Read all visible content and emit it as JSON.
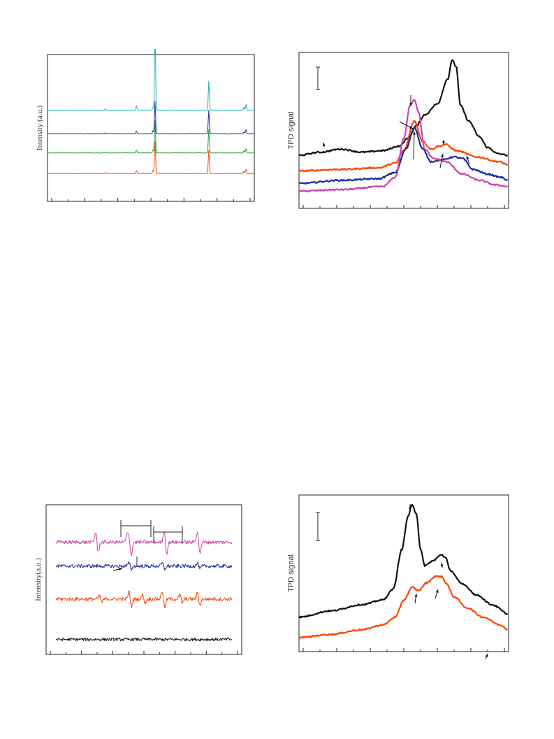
{
  "chart_data": [
    {
      "id": "xrd",
      "type": "line",
      "title": "",
      "xlabel": "",
      "ylabel": "Intensity (a.u.)",
      "xlim": [
        0,
        100
      ],
      "ylim": [
        0,
        100
      ],
      "grid": false,
      "tick_labels_visible": false,
      "series": [
        {
          "color": "#ff4500",
          "baseline": 19,
          "noise": 0.3,
          "peaks": [
            [
              52,
              22
            ],
            [
              78,
              16
            ],
            [
              51,
              2
            ],
            [
              96,
              3
            ],
            [
              43,
              2
            ],
            [
              28,
              0.6
            ],
            [
              95,
              1.5
            ]
          ]
        },
        {
          "color": "#1fa03c",
          "baseline": 33,
          "noise": 0.3,
          "peaks": [
            [
              52,
              22
            ],
            [
              78,
              16
            ],
            [
              51,
              2
            ],
            [
              96,
              3
            ],
            [
              43,
              2
            ],
            [
              28,
              0.6
            ],
            [
              95,
              1.5
            ]
          ]
        },
        {
          "color": "#1c2a9a",
          "baseline": 46,
          "noise": 0.3,
          "peaks": [
            [
              52,
              22
            ],
            [
              78,
              16
            ],
            [
              51,
              2
            ],
            [
              96,
              3
            ],
            [
              43,
              2
            ],
            [
              28,
              0.6
            ],
            [
              95,
              1.5
            ]
          ]
        },
        {
          "color": "#17b3a6",
          "baseline": 62,
          "noise": 0.3,
          "peaks": [
            [
              52,
              56
            ],
            [
              78,
              20
            ],
            [
              51,
              2
            ],
            [
              96,
              4
            ],
            [
              43,
              3
            ],
            [
              28,
              1
            ],
            [
              95,
              2
            ]
          ]
        }
      ]
    },
    {
      "id": "tpd-top",
      "type": "line",
      "title": "",
      "xlabel": "",
      "ylabel": "TPD signal",
      "xlim": [
        0,
        100
      ],
      "ylim": [
        0,
        100
      ],
      "grid": false,
      "tick_labels_visible": false,
      "series": [
        {
          "color": "#111111",
          "points": [
            [
              0,
              34
            ],
            [
              10,
              36
            ],
            [
              20,
              38
            ],
            [
              30,
              36
            ],
            [
              40,
              37
            ],
            [
              48,
              40
            ],
            [
              52,
              45
            ],
            [
              56,
              53
            ],
            [
              60,
              60
            ],
            [
              66,
              67
            ],
            [
              71,
              83
            ],
            [
              73,
              95
            ],
            [
              75,
              91
            ],
            [
              77,
              66
            ],
            [
              81,
              56
            ],
            [
              86,
              46
            ],
            [
              90,
              39
            ],
            [
              95,
              35
            ],
            [
              100,
              34
            ]
          ]
        },
        {
          "color": "#ff4500",
          "points": [
            [
              0,
              24
            ],
            [
              20,
              25
            ],
            [
              38,
              26
            ],
            [
              46,
              29
            ],
            [
              50,
              37
            ],
            [
              55,
              56
            ],
            [
              59,
              43
            ],
            [
              63,
              38
            ],
            [
              67,
              40
            ],
            [
              70,
              41
            ],
            [
              75,
              37
            ],
            [
              85,
              33
            ],
            [
              95,
              30
            ],
            [
              100,
              28
            ]
          ]
        },
        {
          "color": "#1c2a9a",
          "points": [
            [
              0,
              16
            ],
            [
              20,
              18
            ],
            [
              38,
              19
            ],
            [
              46,
              23
            ],
            [
              51,
              38
            ],
            [
              55,
              52
            ],
            [
              59,
              38
            ],
            [
              63,
              30
            ],
            [
              68,
              31
            ],
            [
              74,
              33
            ],
            [
              78,
              32
            ],
            [
              83,
              25
            ],
            [
              90,
              22
            ],
            [
              96,
              20
            ],
            [
              100,
              18
            ]
          ]
        },
        {
          "color": "#cc44aa",
          "points": [
            [
              0,
              11
            ],
            [
              20,
              12
            ],
            [
              40,
              14
            ],
            [
              46,
              20
            ],
            [
              50,
              45
            ],
            [
              53,
              66
            ],
            [
              55,
              70
            ],
            [
              57,
              62
            ],
            [
              60,
              38
            ],
            [
              64,
              32
            ],
            [
              70,
              30
            ],
            [
              78,
              22
            ],
            [
              86,
              18
            ],
            [
              94,
              15
            ],
            [
              100,
              14
            ]
          ]
        }
      ]
    },
    {
      "id": "epr",
      "type": "line",
      "title": "",
      "xlabel": "",
      "ylabel": "Intensity(a.u.)",
      "xlim": [
        0,
        100
      ],
      "ylim": [
        0,
        100
      ],
      "grid": false,
      "tick_labels_visible": false,
      "series": [
        {
          "color": "#111111",
          "baseline": 10,
          "noise": 1.0,
          "lines": []
        },
        {
          "color": "#ff4500",
          "baseline": 37,
          "noise": 1.2,
          "lines": [
            [
              28,
              3
            ],
            [
              43,
              7
            ],
            [
              60,
              8
            ],
            [
              78,
              6
            ],
            [
              50,
              4
            ],
            [
              69,
              4
            ]
          ]
        },
        {
          "color": "#1c2a9a",
          "baseline": 59,
          "noise": 1.2,
          "lines": [
            [
              43,
              3
            ],
            [
              60,
              3
            ],
            [
              78,
              3
            ]
          ]
        },
        {
          "color": "#cc44aa",
          "baseline": 75,
          "noise": 1.2,
          "lines": [
            [
              26,
              10
            ],
            [
              43,
              11
            ],
            [
              61,
              11
            ],
            [
              78,
              11
            ],
            [
              42,
              6
            ]
          ]
        }
      ]
    },
    {
      "id": "tpd-bottom",
      "type": "line",
      "title": "",
      "xlabel": "",
      "ylabel": "TPD signal",
      "xlim": [
        0,
        100
      ],
      "ylim": [
        0,
        100
      ],
      "grid": false,
      "tick_labels_visible": false,
      "series": [
        {
          "color": "#111111",
          "points": [
            [
              0,
              22
            ],
            [
              15,
              26
            ],
            [
              30,
              30
            ],
            [
              40,
              33
            ],
            [
              45,
              40
            ],
            [
              49,
              65
            ],
            [
              52,
              86
            ],
            [
              54,
              94
            ],
            [
              56,
              88
            ],
            [
              58,
              65
            ],
            [
              60,
              55
            ],
            [
              64,
              58
            ],
            [
              68,
              62
            ],
            [
              70,
              60
            ],
            [
              72,
              52
            ],
            [
              78,
              43
            ],
            [
              85,
              36
            ],
            [
              92,
              30
            ],
            [
              100,
              24
            ]
          ]
        },
        {
          "color": "#ff4500",
          "points": [
            [
              0,
              9
            ],
            [
              15,
              11
            ],
            [
              30,
              14
            ],
            [
              40,
              17
            ],
            [
              46,
              22
            ],
            [
              50,
              33
            ],
            [
              54,
              41
            ],
            [
              57,
              39
            ],
            [
              61,
              44
            ],
            [
              65,
              48
            ],
            [
              68,
              48
            ],
            [
              70,
              44
            ],
            [
              74,
              35
            ],
            [
              80,
              28
            ],
            [
              88,
              22
            ],
            [
              96,
              17
            ],
            [
              100,
              14
            ]
          ]
        }
      ]
    }
  ]
}
